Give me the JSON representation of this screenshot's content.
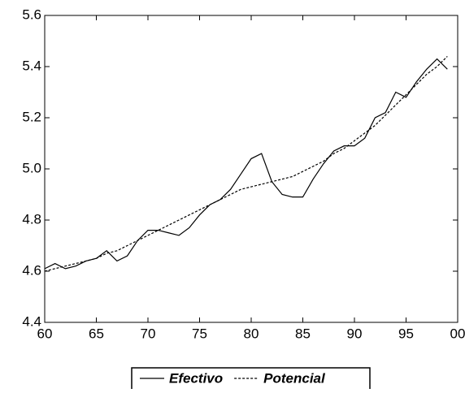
{
  "chart_data": {
    "type": "line",
    "x": [
      60,
      61,
      62,
      63,
      64,
      65,
      66,
      67,
      68,
      69,
      70,
      71,
      72,
      73,
      74,
      75,
      76,
      77,
      78,
      79,
      80,
      81,
      82,
      83,
      84,
      85,
      86,
      87,
      88,
      89,
      90,
      91,
      92,
      93,
      94,
      95,
      96,
      97,
      98,
      99
    ],
    "series": [
      {
        "name": "Efectivo",
        "color": "#000000",
        "style": "solid",
        "values": [
          4.61,
          4.63,
          4.61,
          4.62,
          4.64,
          4.65,
          4.68,
          4.64,
          4.66,
          4.72,
          4.76,
          4.76,
          4.75,
          4.74,
          4.77,
          4.82,
          4.86,
          4.88,
          4.92,
          4.98,
          5.04,
          5.06,
          4.95,
          4.9,
          4.89,
          4.89,
          4.96,
          5.02,
          5.07,
          5.09,
          5.09,
          5.12,
          5.2,
          5.22,
          5.3,
          5.28,
          5.34,
          5.39,
          5.43,
          5.39
        ]
      },
      {
        "name": "Potencial",
        "color": "#000000",
        "style": "dashed",
        "values": [
          4.6,
          4.61,
          4.62,
          4.63,
          4.64,
          4.65,
          4.67,
          4.68,
          4.7,
          4.72,
          4.74,
          4.76,
          4.78,
          4.8,
          4.82,
          4.84,
          4.86,
          4.88,
          4.9,
          4.92,
          4.93,
          4.94,
          4.95,
          4.96,
          4.97,
          4.99,
          5.01,
          5.03,
          5.06,
          5.08,
          5.11,
          5.14,
          5.17,
          5.21,
          5.25,
          5.29,
          5.33,
          5.37,
          5.4,
          5.44
        ]
      }
    ],
    "xlim": [
      60,
      100
    ],
    "xticks": [
      60,
      65,
      70,
      75,
      80,
      85,
      90,
      95,
      {
        "value": 100,
        "label": "00"
      }
    ],
    "ylim": [
      4.4,
      5.6
    ],
    "yticks": [
      4.4,
      4.6,
      4.8,
      {
        "value": 5,
        "label": "5.0"
      },
      5.2,
      5.4,
      5.6
    ],
    "grid": false,
    "legend": "bottom"
  }
}
